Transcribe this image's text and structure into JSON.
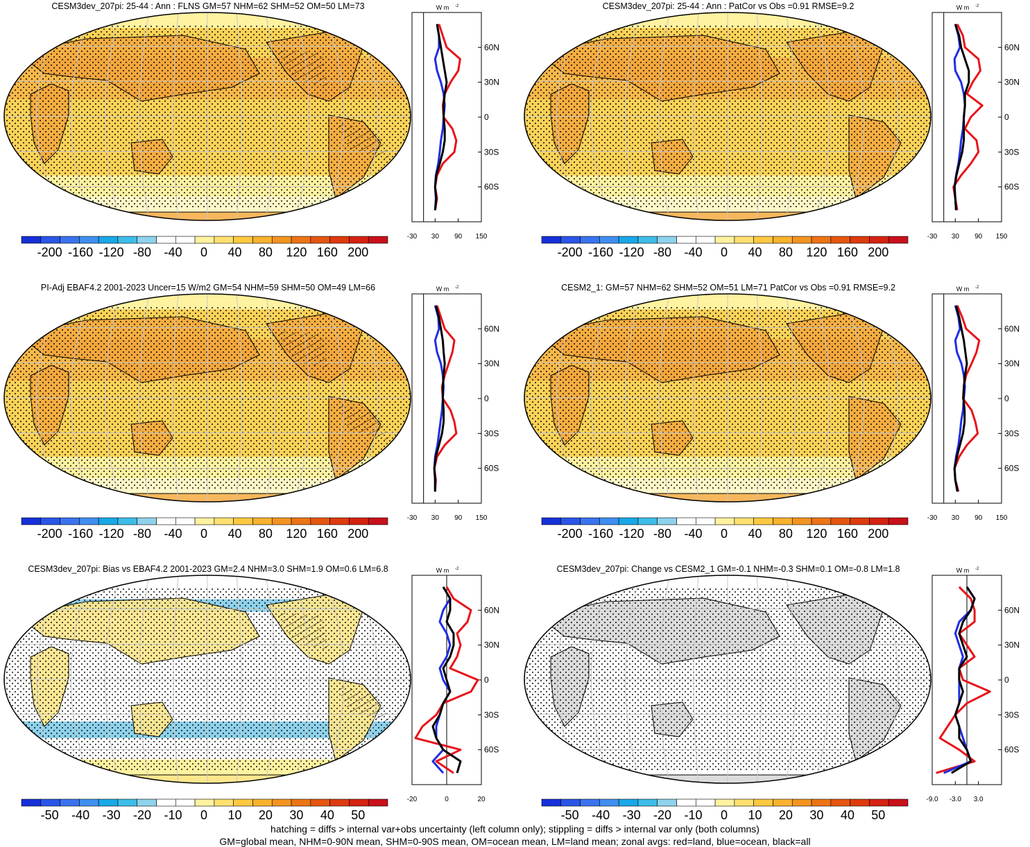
{
  "panels": [
    {
      "title": "CESM3dev_207pi: 25-44 : Ann : FLNS GM=57 NHM=62 SHM=52 OM=50 LM=73",
      "kind": "abs",
      "hatch": true,
      "cbar_labels": [
        "-200",
        "-160",
        "-120",
        "-80",
        "-40",
        "0",
        "40",
        "80",
        "120",
        "160",
        "200"
      ],
      "zonal_ticks": [
        "-30",
        "30",
        "90",
        "150"
      ],
      "zonal_range": [
        -30,
        150
      ]
    },
    {
      "title": "CESM3dev_207pi: 25-44 : Ann : PatCor vs Obs =0.91 RMSE=9.2",
      "kind": "abs",
      "hatch": false,
      "cbar_labels": [
        "-200",
        "-160",
        "-120",
        "-80",
        "-40",
        "0",
        "40",
        "80",
        "120",
        "160",
        "200"
      ],
      "zonal_ticks": [
        "-30",
        "30",
        "90",
        "150"
      ],
      "zonal_range": [
        -30,
        150
      ]
    },
    {
      "title": "PI-Adj EBAF4.2 2001-2023 Uncer=15 W/m2 GM=54 NHM=59 SHM=50 OM=49 LM=66",
      "kind": "abs",
      "hatch": true,
      "cbar_labels": [
        "-200",
        "-160",
        "-120",
        "-80",
        "-40",
        "0",
        "40",
        "80",
        "120",
        "160",
        "200"
      ],
      "zonal_ticks": [
        "-30",
        "30",
        "90",
        "150"
      ],
      "zonal_range": [
        -30,
        150
      ]
    },
    {
      "title": "CESM2_1: GM=57 NHM=62 SHM=52 OM=51 LM=71 PatCor vs Obs =0.91 RMSE=9.2",
      "kind": "abs",
      "hatch": false,
      "cbar_labels": [
        "-200",
        "-160",
        "-120",
        "-80",
        "-40",
        "0",
        "40",
        "80",
        "120",
        "160",
        "200"
      ],
      "zonal_ticks": [
        "-30",
        "30",
        "90",
        "150"
      ],
      "zonal_range": [
        -30,
        150
      ]
    },
    {
      "title": "CESM3dev_207pi: Bias vs EBAF4.2 2001-2023 GM=2.4 NHM=3.0 SHM=1.9 OM=0.6 LM=6.8",
      "kind": "bias",
      "hatch": true,
      "cbar_labels": [
        "-50",
        "-40",
        "-30",
        "-20",
        "-10",
        "0",
        "10",
        "20",
        "30",
        "40",
        "50"
      ],
      "zonal_ticks": [
        "-20",
        "0",
        "20"
      ],
      "zonal_range": [
        -20,
        20
      ]
    },
    {
      "title": "CESM3dev_207pi: Change vs CESM2_1 GM=-0.1 NHM=-0.3 SHM=0.1 OM=-0.8 LM=1.8",
      "kind": "change",
      "hatch": false,
      "cbar_labels": [
        "-50",
        "-40",
        "-30",
        "-20",
        "-10",
        "0",
        "10",
        "20",
        "30",
        "40",
        "50"
      ],
      "zonal_ticks": [
        "-9.0",
        "-3.0",
        "3.0"
      ],
      "zonal_range": [
        -9,
        9
      ]
    }
  ],
  "lat_labels": [
    "60N",
    "30N",
    "0",
    "30S",
    "60S"
  ],
  "units": "W m",
  "units_exp": "-2",
  "colors": {
    "scale": [
      "#1530d8",
      "#2a55e6",
      "#3a73ee",
      "#3f8ff0",
      "#18a8e8",
      "#3dbde8",
      "#8fd2ec",
      "#ffffff",
      "#ffffff",
      "#fff2a0",
      "#ffe070",
      "#fcc940",
      "#f8b22e",
      "#f39420",
      "#ec7416",
      "#e5560f",
      "#de3a0d",
      "#d62210",
      "#c8101a"
    ],
    "land": "#d8d8d8"
  },
  "chart_data": [
    {
      "type": "map+zonal",
      "title": "CESM3dev_207pi: 25-44 : Ann : FLNS GM=57 NHM=62 SHM=52 OM=50 LM=73",
      "colorbar": [
        -200,
        -160,
        -120,
        -80,
        -40,
        0,
        40,
        80,
        120,
        160,
        200
      ],
      "zonal_lat": [
        80,
        70,
        60,
        50,
        40,
        30,
        20,
        10,
        0,
        -10,
        -20,
        -30,
        -40,
        -50,
        -60,
        -70,
        -80
      ],
      "zonal": {
        "land": [
          40,
          50,
          60,
          95,
          90,
          70,
          55,
          50,
          52,
          75,
          85,
          80,
          50,
          35,
          30,
          35,
          30
        ],
        "ocean": [
          35,
          40,
          40,
          30,
          35,
          45,
          52,
          55,
          52,
          50,
          45,
          42,
          38,
          32,
          30,
          32,
          30
        ],
        "all": [
          35,
          40,
          45,
          50,
          55,
          60,
          55,
          52,
          52,
          55,
          55,
          50,
          42,
          33,
          30,
          33,
          30
        ]
      }
    },
    {
      "type": "map+zonal",
      "title": "CESM3dev_207pi: 25-44 : Ann : PatCor vs Obs =0.91 RMSE=9.2",
      "colorbar": [
        -200,
        -160,
        -120,
        -80,
        -40,
        0,
        40,
        80,
        120,
        160,
        200
      ],
      "zonal_lat": [
        80,
        70,
        60,
        50,
        40,
        30,
        20,
        10,
        0,
        -10,
        -20,
        -30,
        -40,
        -50,
        -60,
        -70,
        -80
      ],
      "zonal": {
        "land": [
          35,
          50,
          55,
          90,
          95,
          75,
          60,
          100,
          70,
          55,
          85,
          90,
          70,
          45,
          25,
          30,
          35
        ],
        "ocean": [
          30,
          38,
          42,
          28,
          30,
          45,
          52,
          55,
          52,
          50,
          45,
          42,
          38,
          32,
          28,
          30,
          32
        ],
        "all": [
          30,
          40,
          45,
          55,
          65,
          65,
          55,
          55,
          52,
          52,
          52,
          48,
          40,
          33,
          28,
          30,
          32
        ]
      }
    },
    {
      "type": "map+zonal",
      "title": "PI-Adj EBAF4.2 2001-2023 Uncer=15 W/m2 GM=54 NHM=59 SHM=50 OM=49 LM=66",
      "colorbar": [
        -200,
        -160,
        -120,
        -80,
        -40,
        0,
        40,
        80,
        120,
        160,
        200
      ],
      "zonal_lat": [
        80,
        70,
        60,
        50,
        40,
        30,
        20,
        10,
        0,
        -10,
        -20,
        -30,
        -40,
        -50,
        -60,
        -70,
        -80
      ],
      "zonal": {
        "land": [
          35,
          45,
          55,
          80,
          75,
          65,
          55,
          48,
          50,
          70,
          80,
          85,
          55,
          35,
          28,
          32,
          30
        ],
        "ocean": [
          30,
          38,
          40,
          30,
          35,
          45,
          50,
          52,
          50,
          48,
          44,
          40,
          36,
          30,
          28,
          30,
          30
        ],
        "all": [
          32,
          40,
          45,
          50,
          52,
          55,
          52,
          50,
          50,
          52,
          52,
          48,
          40,
          32,
          28,
          30,
          30
        ]
      }
    },
    {
      "type": "map+zonal",
      "title": "CESM2_1: GM=57 NHM=62 SHM=52 OM=51 LM=71 PatCor vs Obs =0.91 RMSE=9.2",
      "colorbar": [
        -200,
        -160,
        -120,
        -80,
        -40,
        0,
        40,
        80,
        120,
        160,
        200
      ],
      "zonal_lat": [
        80,
        70,
        60,
        50,
        40,
        30,
        20,
        10,
        0,
        -10,
        -20,
        -30,
        -40,
        -50,
        -60,
        -70,
        -80
      ],
      "zonal": {
        "land": [
          35,
          48,
          58,
          92,
          85,
          72,
          58,
          52,
          50,
          72,
          82,
          88,
          60,
          40,
          28,
          30,
          38
        ],
        "ocean": [
          30,
          38,
          42,
          30,
          34,
          46,
          52,
          55,
          52,
          50,
          45,
          42,
          38,
          32,
          28,
          30,
          35
        ],
        "all": [
          32,
          40,
          46,
          52,
          56,
          60,
          55,
          52,
          51,
          54,
          54,
          50,
          42,
          34,
          28,
          30,
          36
        ]
      }
    },
    {
      "type": "map+zonal",
      "title": "CESM3dev_207pi: Bias vs EBAF4.2 2001-2023 GM=2.4 NHM=3.0 SHM=1.9 OM=0.6 LM=6.8",
      "colorbar": [
        -50,
        -40,
        -30,
        -20,
        -10,
        0,
        10,
        20,
        30,
        40,
        50
      ],
      "zonal_lat": [
        80,
        70,
        60,
        50,
        40,
        30,
        20,
        10,
        0,
        -10,
        -20,
        -30,
        -40,
        -50,
        -60,
        -70,
        -80
      ],
      "zonal": {
        "land": [
          0,
          4,
          14,
          12,
          6,
          8,
          6,
          2,
          18,
          14,
          -2,
          -6,
          -14,
          -18,
          8,
          -6,
          4
        ],
        "ocean": [
          -2,
          2,
          -2,
          -4,
          0,
          2,
          0,
          -4,
          -2,
          2,
          -2,
          -4,
          -6,
          -6,
          -2,
          -8,
          -2
        ],
        "all": [
          -2,
          2,
          2,
          0,
          4,
          4,
          2,
          -2,
          0,
          2,
          -2,
          -4,
          -8,
          -6,
          -2,
          8,
          6
        ]
      }
    },
    {
      "type": "map+zonal",
      "title": "CESM3dev_207pi: Change vs CESM2_1 GM=-0.1 NHM=-0.3 SHM=0.1 OM=-0.8 LM=1.8",
      "colorbar": [
        -50,
        -40,
        -30,
        -20,
        -10,
        0,
        10,
        20,
        30,
        40,
        50
      ],
      "zonal_lat": [
        80,
        70,
        60,
        50,
        40,
        30,
        20,
        10,
        0,
        -10,
        -20,
        -30,
        -40,
        -50,
        -60,
        -70,
        -80
      ],
      "zonal": {
        "land": [
          -2,
          1,
          2,
          2,
          -2,
          0,
          2,
          -2,
          -1,
          6,
          0,
          -3,
          -5,
          -7,
          -2,
          2,
          -8
        ],
        "ocean": [
          0,
          2,
          1,
          -2,
          -3,
          -2,
          -1,
          -2,
          -2,
          -2,
          -2,
          -3,
          -2,
          -1,
          0,
          1,
          -6
        ],
        "all": [
          0,
          2,
          1,
          -1,
          -2,
          -1,
          0,
          -2,
          -2,
          -1,
          -2,
          -3,
          -2,
          -2,
          0,
          1,
          -4
        ]
      }
    }
  ],
  "footer": {
    "line1": "hatching = diffs > internal var+obs uncertainty (left column only); stippling = diffs > internal var only (both columns)",
    "line2": "GM=global mean, NHM=0-90N mean, SHM=0-90S mean, OM=ocean mean, LM=land mean; zonal avgs: red=land, blue=ocean, black=all"
  }
}
